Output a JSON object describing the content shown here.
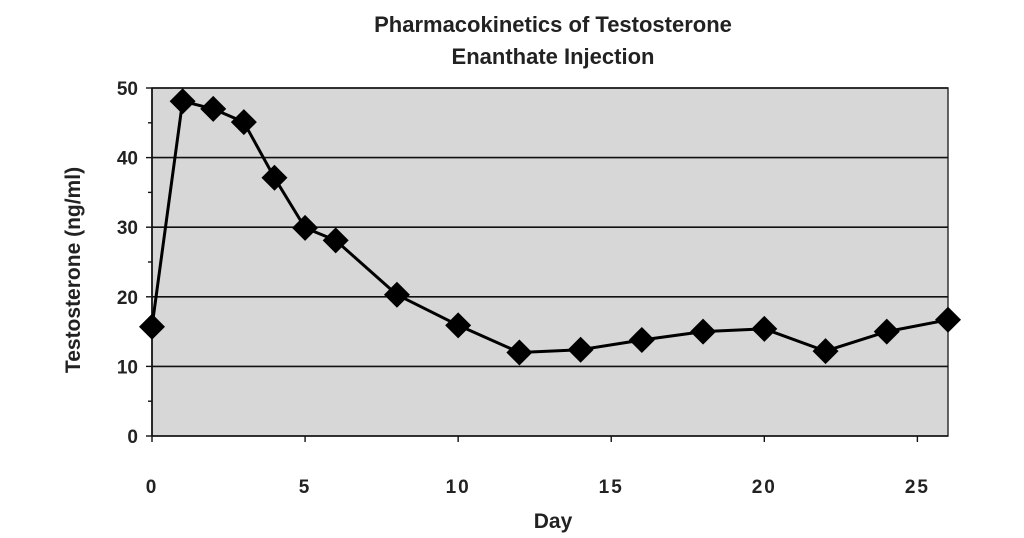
{
  "chart_data": {
    "type": "line",
    "title_lines": [
      "Pharmacokinetics of Testosterone",
      "Enanthate Injection"
    ],
    "xlabel": "Day",
    "ylabel": "Testosterone (ng/ml)",
    "xlim": [
      0,
      26
    ],
    "ylim": [
      0,
      50
    ],
    "xticks": [
      0,
      5,
      10,
      15,
      20,
      25
    ],
    "yticks": [
      0,
      10,
      20,
      30,
      40,
      50
    ],
    "grid": "horizontal",
    "plot_background": "#d7d7d7",
    "line_color": "#000000",
    "marker": "diamond",
    "series": [
      {
        "x": [
          0,
          1,
          2,
          3,
          4,
          5,
          6,
          8,
          10,
          12,
          14,
          16,
          18,
          20,
          22,
          24,
          26
        ],
        "y": [
          15.7,
          48.1,
          47,
          45.1,
          37.1,
          29.9,
          28.1,
          20.3,
          15.9,
          12,
          12.4,
          13.8,
          15,
          15.4,
          12.2,
          15,
          16.7
        ]
      }
    ]
  }
}
